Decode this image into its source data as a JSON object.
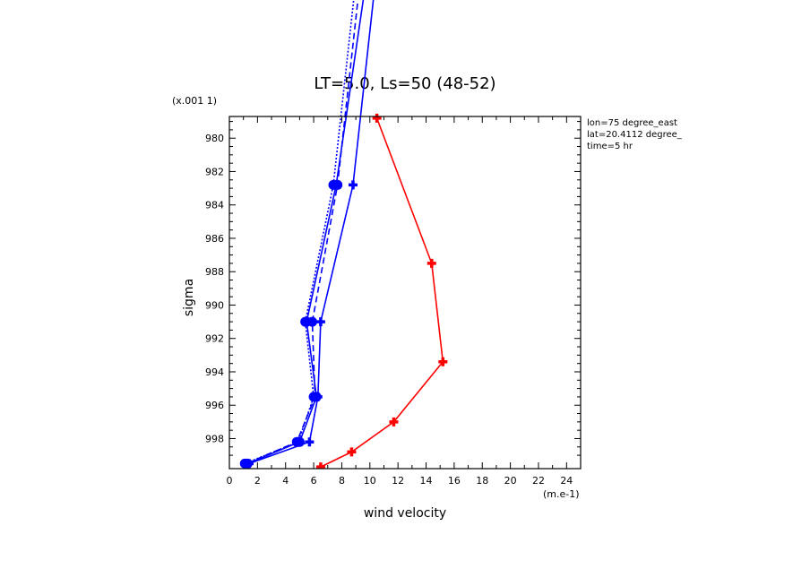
{
  "chart_data": {
    "type": "line",
    "title": "LT=5.0, Ls=50 (48-52)",
    "xlabel": "wind velocity",
    "ylabel": "sigma",
    "x_unit_label": "(m.e-1)",
    "y_unit_label": "(x.001 1)",
    "xlim": [
      0,
      25
    ],
    "ylim": [
      999.8,
      978.7
    ],
    "y_reversed": true,
    "x_ticks": [
      0,
      2,
      4,
      6,
      8,
      10,
      12,
      14,
      16,
      18,
      20,
      22,
      24
    ],
    "y_ticks": [
      980,
      982,
      984,
      986,
      988,
      990,
      992,
      994,
      996,
      998
    ],
    "annotations": [
      "lon=75 degree_east",
      "lat=20.4112 degree_",
      "time=5 hr"
    ],
    "series": [
      {
        "color": "#ff0000",
        "style": "solid",
        "marker": "plus",
        "points": [
          [
            10.5,
            978.8
          ],
          [
            14.4,
            987.5
          ],
          [
            15.2,
            993.4
          ],
          [
            11.7,
            997.0
          ],
          [
            8.7,
            998.8
          ],
          [
            6.5,
            999.7
          ]
        ]
      },
      {
        "color": "#0000ff",
        "style": "solid",
        "marker": "plus",
        "points": [
          [
            10.6,
            969.0
          ],
          [
            8.8,
            982.8
          ],
          [
            6.5,
            991.0
          ],
          [
            6.3,
            995.5
          ],
          [
            5.7,
            998.2
          ],
          [
            1.4,
            999.5
          ]
        ]
      },
      {
        "color": "#0000ff",
        "style": "solid",
        "marker": "circle",
        "points": [
          [
            10.0,
            969.0
          ],
          [
            7.6,
            982.8
          ],
          [
            5.5,
            991.0
          ],
          [
            6.2,
            995.5
          ],
          [
            5.0,
            998.2
          ],
          [
            1.3,
            999.5
          ]
        ]
      },
      {
        "color": "#0000ff",
        "style": "dashed",
        "marker": "circle",
        "points": [
          [
            9.5,
            969.0
          ],
          [
            7.7,
            982.8
          ],
          [
            5.9,
            991.0
          ],
          [
            6.1,
            995.5
          ],
          [
            4.8,
            998.2
          ],
          [
            1.2,
            999.5
          ]
        ]
      },
      {
        "color": "#0000ff",
        "style": "dotted",
        "marker": "circle",
        "points": [
          [
            9.2,
            969.0
          ],
          [
            7.4,
            982.8
          ],
          [
            5.4,
            991.0
          ],
          [
            6.0,
            995.5
          ],
          [
            4.9,
            998.2
          ],
          [
            1.1,
            999.5
          ]
        ]
      }
    ]
  }
}
